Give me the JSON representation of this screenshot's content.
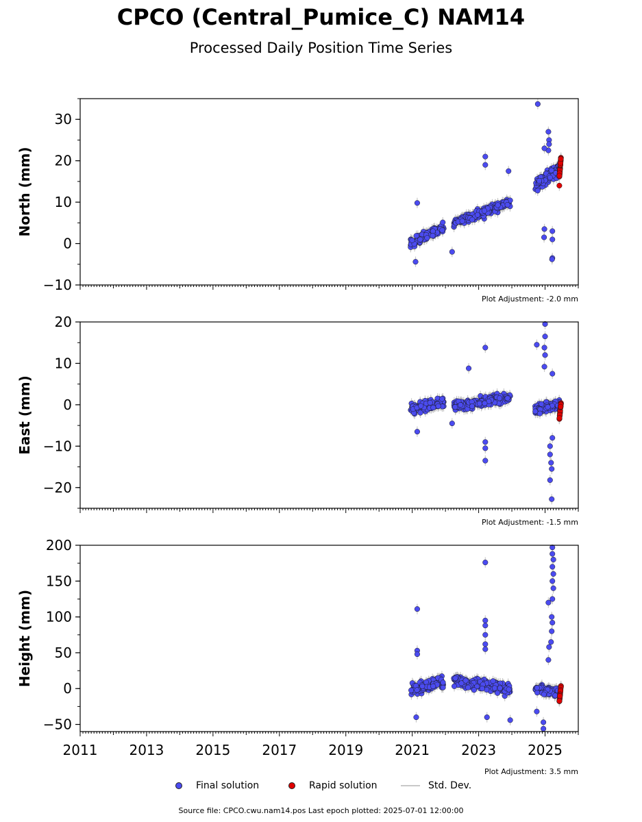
{
  "title": "CPCO (Central_Pumice_C) NAM14",
  "subtitle": "Processed Daily Position Time Series",
  "source": "Source file: CPCO.cwu.nam14.pos  Last epoch plotted: 2025-07-01 12:00:00",
  "legend": [
    {
      "label": "Final solution",
      "marker": "dot",
      "color": "#4b4bf0"
    },
    {
      "label": "Rapid solution",
      "marker": "dot",
      "color": "#e00000"
    },
    {
      "label": "Std. Dev.",
      "marker": "line",
      "color": "#c8c8c8"
    }
  ],
  "chart_data": [
    {
      "type": "scatter",
      "ylabel": "North (mm)",
      "xlim": [
        2011,
        2026
      ],
      "ylim": [
        -10,
        35
      ],
      "yticks": [
        -10,
        0,
        10,
        20,
        30
      ],
      "ytick_labels": [
        "−10",
        "0",
        "10",
        "20",
        "30"
      ],
      "adjustment": "Plot Adjustment: -2.0 mm",
      "series": [
        {
          "name": "Final solution",
          "color": "#4b4bf0",
          "clusters": [
            {
              "x": [
                2020.95,
                2021.95
              ],
              "y": [
                0,
                4
              ],
              "spread": 3,
              "n": 120
            },
            {
              "x": [
                2022.25,
                2023.95
              ],
              "y": [
                5,
                10
              ],
              "spread": 3,
              "n": 200
            },
            {
              "x": [
                2024.7,
                2025.45
              ],
              "y": [
                14,
                18
              ],
              "spread": 4,
              "n": 140
            }
          ],
          "points": [
            [
              2021.15,
              9.8
            ],
            [
              2021.1,
              -4.4
            ],
            [
              2022.2,
              -2.0
            ],
            [
              2023.2,
              21.0
            ],
            [
              2023.2,
              19.0
            ],
            [
              2023.9,
              17.5
            ],
            [
              2024.78,
              33.7
            ],
            [
              2025.1,
              27
            ],
            [
              2025.12,
              25
            ],
            [
              2025.12,
              24
            ],
            [
              2025.1,
              22.5
            ],
            [
              2024.98,
              23
            ],
            [
              2025.22,
              3
            ],
            [
              2025.22,
              -3.5
            ],
            [
              2025.22,
              1
            ],
            [
              2024.97,
              1.5
            ],
            [
              2024.98,
              3.5
            ],
            [
              2025.21,
              -3.8
            ]
          ]
        },
        {
          "name": "Rapid solution",
          "color": "#e00000",
          "clusters": [
            {
              "x": [
                2025.43,
                2025.48
              ],
              "y": [
                16,
                21
              ],
              "spread": 0,
              "n": 30
            }
          ],
          "points": [
            [
              2025.43,
              14
            ]
          ]
        }
      ]
    },
    {
      "type": "scatter",
      "ylabel": "East (mm)",
      "xlim": [
        2011,
        2026
      ],
      "ylim": [
        -25,
        20
      ],
      "yticks": [
        -20,
        -10,
        0,
        10,
        20
      ],
      "ytick_labels": [
        "−20",
        "−10",
        "0",
        "10",
        "20"
      ],
      "adjustment": "Plot Adjustment: -1.5 mm",
      "series": [
        {
          "name": "Final solution",
          "color": "#4b4bf0",
          "clusters": [
            {
              "x": [
                2020.95,
                2021.95
              ],
              "y": [
                -1,
                0.5
              ],
              "spread": 3,
              "n": 120
            },
            {
              "x": [
                2022.25,
                2023.95
              ],
              "y": [
                -0.5,
                2
              ],
              "spread": 3,
              "n": 200
            },
            {
              "x": [
                2024.7,
                2025.45
              ],
              "y": [
                -1,
                0
              ],
              "spread": 3,
              "n": 120
            }
          ],
          "points": [
            [
              2021.15,
              -6.5
            ],
            [
              2022.2,
              -4.5
            ],
            [
              2022.7,
              8.8
            ],
            [
              2023.2,
              13.8
            ],
            [
              2023.2,
              -9
            ],
            [
              2023.2,
              -10.5
            ],
            [
              2023.2,
              -13.5
            ],
            [
              2024.75,
              14.5
            ],
            [
              2025.0,
              19.5
            ],
            [
              2025.0,
              16.5
            ],
            [
              2024.98,
              13.8
            ],
            [
              2025.0,
              12
            ],
            [
              2025.22,
              7.5
            ],
            [
              2024.98,
              9.2
            ],
            [
              2025.15,
              -10
            ],
            [
              2025.15,
              -12
            ],
            [
              2025.18,
              -14
            ],
            [
              2025.2,
              -15.5
            ],
            [
              2025.15,
              -18.2
            ],
            [
              2025.2,
              -22.8
            ],
            [
              2025.22,
              -8
            ]
          ]
        },
        {
          "name": "Rapid solution",
          "color": "#e00000",
          "clusters": [
            {
              "x": [
                2025.43,
                2025.48
              ],
              "y": [
                -3.5,
                0.5
              ],
              "spread": 0,
              "n": 30
            }
          ],
          "points": []
        }
      ]
    },
    {
      "type": "scatter",
      "ylabel": "Height (mm)",
      "xlim": [
        2011,
        2026
      ],
      "ylim": [
        -60,
        200
      ],
      "yticks": [
        -50,
        0,
        50,
        100,
        150,
        200
      ],
      "ytick_labels": [
        "−50",
        "0",
        "50",
        "100",
        "150",
        "200"
      ],
      "xticks": [
        2011,
        2013,
        2015,
        2017,
        2019,
        2021,
        2023,
        2025
      ],
      "xtick_labels": [
        "2011",
        "2013",
        "2015",
        "2017",
        "2019",
        "2021",
        "2023",
        "2025"
      ],
      "adjustment": "Plot Adjustment: 3.5 mm",
      "series": [
        {
          "name": "Final solution",
          "color": "#4b4bf0",
          "clusters": [
            {
              "x": [
                2020.95,
                2021.95
              ],
              "y": [
                0,
                10
              ],
              "spread": 20,
              "n": 120
            },
            {
              "x": [
                2022.25,
                2023.95
              ],
              "y": [
                10,
                0
              ],
              "spread": 20,
              "n": 200
            },
            {
              "x": [
                2024.7,
                2025.45
              ],
              "y": [
                0,
                -5
              ],
              "spread": 15,
              "n": 120
            }
          ],
          "points": [
            [
              2021.15,
              111
            ],
            [
              2021.15,
              53
            ],
            [
              2021.15,
              48
            ],
            [
              2021.12,
              -40
            ],
            [
              2023.2,
              176
            ],
            [
              2023.2,
              95
            ],
            [
              2023.2,
              88
            ],
            [
              2023.2,
              75
            ],
            [
              2023.2,
              62
            ],
            [
              2023.2,
              55
            ],
            [
              2023.25,
              -40
            ],
            [
              2023.95,
              -44
            ],
            [
              2024.75,
              -32
            ],
            [
              2024.95,
              -47
            ],
            [
              2024.95,
              -56
            ],
            [
              2025.1,
              120
            ],
            [
              2025.22,
              197
            ],
            [
              2025.22,
              188
            ],
            [
              2025.25,
              180
            ],
            [
              2025.22,
              170
            ],
            [
              2025.25,
              160
            ],
            [
              2025.22,
              150
            ],
            [
              2025.25,
              140
            ],
            [
              2025.22,
              125
            ],
            [
              2025.2,
              100
            ],
            [
              2025.22,
              92
            ],
            [
              2025.2,
              80
            ],
            [
              2025.18,
              65
            ],
            [
              2025.12,
              58
            ],
            [
              2025.1,
              40
            ]
          ]
        },
        {
          "name": "Rapid solution",
          "color": "#e00000",
          "clusters": [
            {
              "x": [
                2025.43,
                2025.48
              ],
              "y": [
                -18,
                4
              ],
              "spread": 0,
              "n": 30
            }
          ],
          "points": []
        }
      ]
    }
  ]
}
